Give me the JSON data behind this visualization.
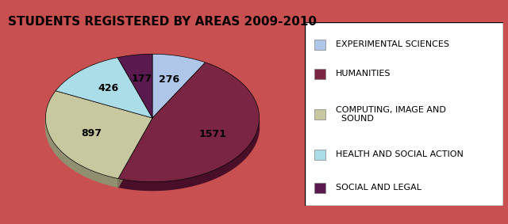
{
  "title": "STUDENTS REGISTERED BY AREAS 2009-2010",
  "values": [
    276,
    1571,
    897,
    426,
    177
  ],
  "slice_labels": [
    "276",
    "1571",
    "897",
    "426",
    "177"
  ],
  "legend_labels": [
    "EXPERIMENTAL SCIENCES",
    "HUMANITIES",
    "COMPUTING, IMAGE AND\n  SOUND",
    "HEALTH AND SOCIAL ACTION",
    "SOCIAL AND LEGAL"
  ],
  "colors": [
    "#aec6e8",
    "#7b2545",
    "#c8c8a0",
    "#aadde8",
    "#5a1a50"
  ],
  "dark_colors": [
    "#7090b0",
    "#4a0f28",
    "#909070",
    "#70a8b0",
    "#2a0030"
  ],
  "background_color": "#c85050",
  "startangle": 90,
  "title_fontsize": 11,
  "label_fontsize": 9,
  "legend_fontsize": 8
}
